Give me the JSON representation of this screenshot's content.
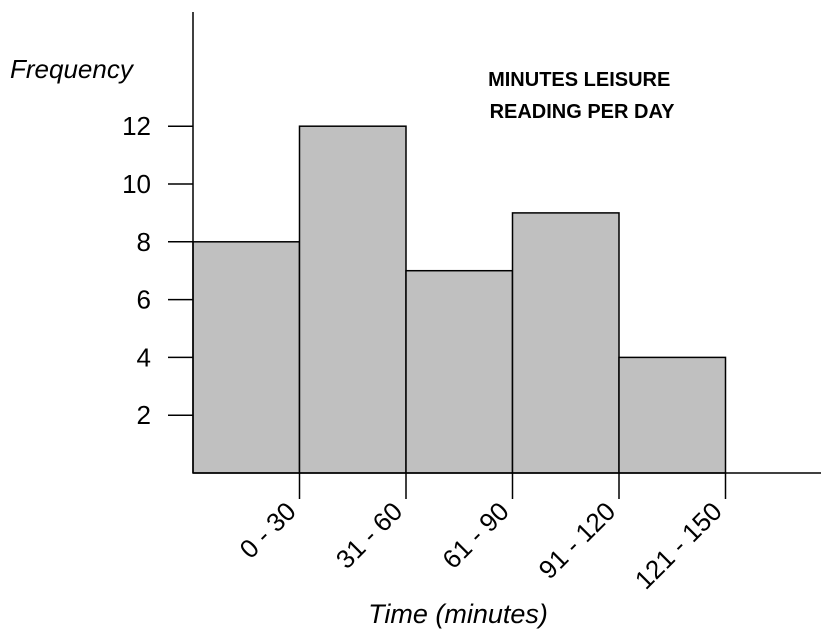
{
  "chart_data": {
    "type": "bar",
    "title_lines": [
      "MINUTES LEISURE",
      "READING PER DAY"
    ],
    "xlabel": "Time (minutes)",
    "ylabel": "Frequency",
    "categories": [
      "0 - 30",
      "31 - 60",
      "61 - 90",
      "91 - 120",
      "121 - 150"
    ],
    "values": [
      8,
      12,
      7,
      9,
      4
    ],
    "y_ticks": [
      2,
      4,
      6,
      8,
      10,
      12
    ],
    "ylim": [
      0,
      15
    ],
    "grid": false,
    "bar_color": "#c0c0c0"
  }
}
